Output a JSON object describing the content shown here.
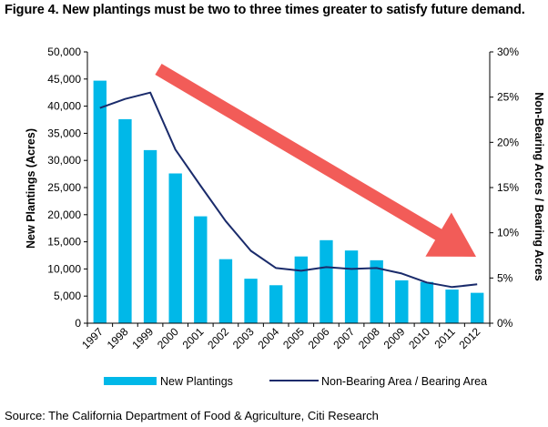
{
  "figure": {
    "title": "Figure 4. New plantings must be two to three times greater to satisfy future demand.",
    "source": "Source: The California Department of Food & Agriculture, Citi Research"
  },
  "colors": {
    "bar": "#00B8E8",
    "line": "#1A2B6B",
    "arrow": "#F25C58",
    "axis": "#000000"
  },
  "chart_data": {
    "type": "bar",
    "categories": [
      "1997",
      "1998",
      "1999",
      "2000",
      "2001",
      "2002",
      "2003",
      "2004",
      "2005",
      "2006",
      "2007",
      "2008",
      "2009",
      "2010",
      "2011",
      "2012"
    ],
    "series": [
      {
        "name": "New Plantings",
        "type": "bar",
        "axis": "left",
        "values": [
          44700,
          37600,
          31900,
          27600,
          19700,
          11800,
          8200,
          7000,
          12300,
          15300,
          13400,
          11600,
          7900,
          7600,
          6200,
          5600
        ]
      },
      {
        "name": "Non-Bearing Area / Bearing Area",
        "type": "line",
        "axis": "right",
        "values": [
          23.8,
          24.8,
          25.5,
          19.2,
          15.2,
          11.3,
          8.0,
          6.1,
          5.8,
          6.2,
          6.0,
          6.1,
          5.5,
          4.5,
          4.0,
          4.3
        ]
      }
    ],
    "ylabel": "New Plantings (Acres)",
    "ylabel_right": "Non-Bearing Acres / Bearing Acres",
    "ylim": [
      0,
      50000
    ],
    "ylim_right": [
      0,
      30
    ],
    "yticks": [
      "0",
      "5,000",
      "10,000",
      "15,000",
      "20,000",
      "25,000",
      "30,000",
      "35,000",
      "40,000",
      "45,000",
      "50,000"
    ],
    "yticks_right": [
      "0%",
      "5%",
      "10%",
      "15%",
      "20%",
      "25%",
      "30%"
    ],
    "grid": false,
    "legend": "bottom",
    "annotations": [
      {
        "type": "arrow",
        "description": "downward trend arrow",
        "from_category": "1999",
        "to_category": "2012"
      }
    ]
  }
}
